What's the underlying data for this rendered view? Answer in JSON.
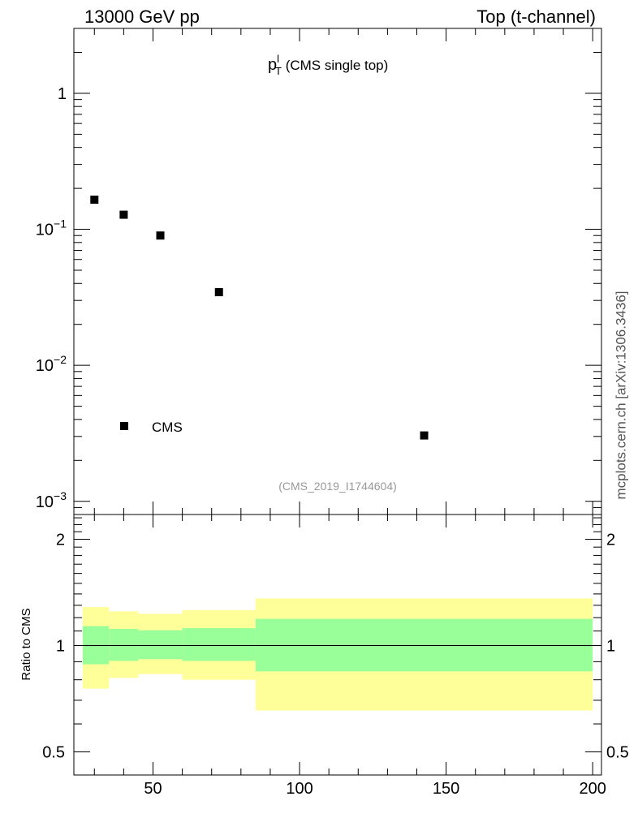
{
  "header": {
    "left": "13000 GeV pp",
    "right": "Top (t-channel)"
  },
  "side_label": "mcplots.cern.ch [arXiv:1306.3436]",
  "chart_data": [
    {
      "type": "scatter",
      "panel": "main",
      "title": {
        "base": "p",
        "sup": "l",
        "sub": "T",
        "rest": " (CMS single top)"
      },
      "yscale": "log",
      "ylim": [
        0.0008,
        3
      ],
      "xlim": [
        23,
        203
      ],
      "y_ticks": [
        {
          "value": 1,
          "label": "1"
        },
        {
          "value": 0.1,
          "base": "10",
          "exp": "−1"
        },
        {
          "value": 0.01,
          "base": "10",
          "exp": "−2"
        },
        {
          "value": 0.001,
          "base": "10",
          "exp": "−3"
        }
      ],
      "series": [
        {
          "name": "CMS",
          "color": "#000000",
          "x": [
            30,
            40,
            52.5,
            72.5,
            142.5
          ],
          "y": [
            0.165,
            0.128,
            0.09,
            0.0345,
            0.00305
          ]
        }
      ],
      "legend": {
        "position": "bottom-left",
        "entries": [
          "CMS"
        ]
      },
      "annotation": "(CMS_2019_I1744604)"
    },
    {
      "type": "area",
      "panel": "ratio",
      "ylabel": "Ratio to CMS",
      "yscale": "log",
      "ylim": [
        0.43,
        2.35
      ],
      "xlim": [
        23,
        203
      ],
      "y_ticks": [
        {
          "value": 2,
          "label": "2"
        },
        {
          "value": 1,
          "label": "1"
        },
        {
          "value": 0.5,
          "label": "0.5"
        }
      ],
      "x_ticks": [
        {
          "value": 50,
          "label": "50"
        },
        {
          "value": 100,
          "label": "100"
        },
        {
          "value": 150,
          "label": "150"
        },
        {
          "value": 200,
          "label": "200"
        }
      ],
      "reference_line": 1,
      "bins": [
        {
          "lo": 26,
          "hi": 35,
          "stat": [
            0.885,
            1.135
          ],
          "total": [
            0.755,
            1.285
          ]
        },
        {
          "lo": 35,
          "hi": 45,
          "stat": [
            0.905,
            1.115
          ],
          "total": [
            0.81,
            1.25
          ]
        },
        {
          "lo": 45,
          "hi": 60,
          "stat": [
            0.915,
            1.105
          ],
          "total": [
            0.83,
            1.23
          ]
        },
        {
          "lo": 60,
          "hi": 85,
          "stat": [
            0.905,
            1.12
          ],
          "total": [
            0.8,
            1.26
          ]
        },
        {
          "lo": 85,
          "hi": 200,
          "stat": [
            0.845,
            1.19
          ],
          "total": [
            0.655,
            1.36
          ]
        }
      ],
      "colors": {
        "stat": "#99ff99",
        "total": "#ffff99"
      }
    }
  ]
}
